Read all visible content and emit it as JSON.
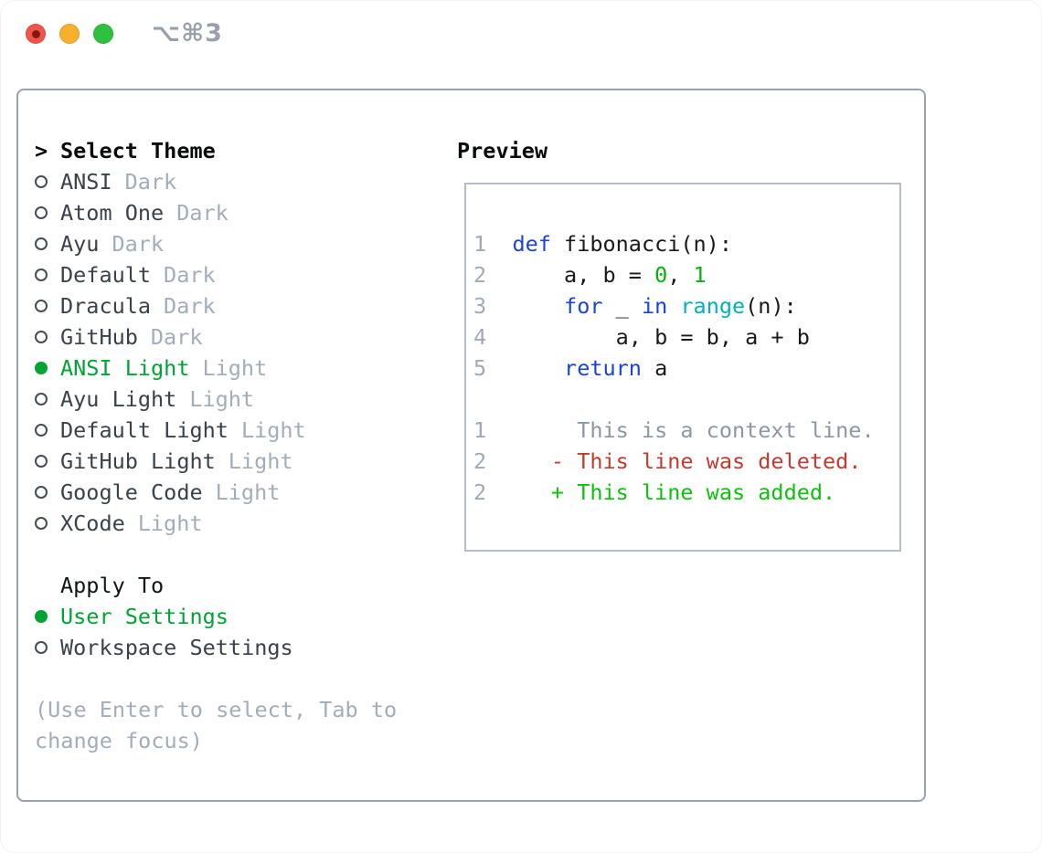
{
  "window": {
    "shortcut_label": "⌥⌘3"
  },
  "colors": {
    "accent_green": "#00a435",
    "added_green": "#0cc20c",
    "number_green": "#06b30c",
    "deleted_red": "#c6392c",
    "keyword_blue": "#1b43d4",
    "builtin_cyan": "#00b1c3",
    "code_text": "#17191d",
    "item_text": "#3a4149",
    "heading_text": "#0a0b0d",
    "muted_gray": "#a3adb9",
    "context_gray": "#8d97a2",
    "line_number_gray": "#a0aab6",
    "main_border": "#99a2b0",
    "preview_border": "#b5bcc7",
    "traffic_red": "#f2544d",
    "traffic_red_dot": "#821a12",
    "traffic_yellow": "#f7b02c",
    "traffic_green": "#2ec03e",
    "shortcut_gray": "#9aa0a9"
  },
  "theme_selector": {
    "cursor": ">",
    "title": "Select Theme",
    "items": [
      {
        "label": "ANSI",
        "variant": "Dark",
        "selected": false
      },
      {
        "label": "Atom One",
        "variant": "Dark",
        "selected": false
      },
      {
        "label": "Ayu",
        "variant": "Dark",
        "selected": false
      },
      {
        "label": "Default",
        "variant": "Dark",
        "selected": false
      },
      {
        "label": "Dracula",
        "variant": "Dark",
        "selected": false
      },
      {
        "label": "GitHub",
        "variant": "Dark",
        "selected": false
      },
      {
        "label": "ANSI Light",
        "variant": "Light",
        "selected": true
      },
      {
        "label": "Ayu Light",
        "variant": "Light",
        "selected": false
      },
      {
        "label": "Default Light",
        "variant": "Light",
        "selected": false
      },
      {
        "label": "GitHub Light",
        "variant": "Light",
        "selected": false
      },
      {
        "label": "Google Code",
        "variant": "Light",
        "selected": false
      },
      {
        "label": "XCode",
        "variant": "Light",
        "selected": false
      }
    ]
  },
  "apply_to": {
    "title": "Apply To",
    "options": [
      {
        "label": "User Settings",
        "selected": true
      },
      {
        "label": "Workspace Settings",
        "selected": false
      }
    ]
  },
  "help_text": "(Use Enter to select, Tab to\nchange focus)",
  "preview": {
    "title": "Preview",
    "code_lines": [
      {
        "num": "1",
        "tokens": [
          {
            "t": "def",
            "c": "keyword"
          },
          {
            "t": " fibonacci(n):",
            "c": "text"
          }
        ]
      },
      {
        "num": "2",
        "tokens": [
          {
            "t": "    a, b = ",
            "c": "text"
          },
          {
            "t": "0",
            "c": "number"
          },
          {
            "t": ", ",
            "c": "text"
          },
          {
            "t": "1",
            "c": "number"
          }
        ]
      },
      {
        "num": "3",
        "tokens": [
          {
            "t": "    ",
            "c": "text"
          },
          {
            "t": "for",
            "c": "keyword"
          },
          {
            "t": " _ ",
            "c": "text"
          },
          {
            "t": "in",
            "c": "keyword"
          },
          {
            "t": " ",
            "c": "text"
          },
          {
            "t": "range",
            "c": "builtin"
          },
          {
            "t": "(n):",
            "c": "text"
          }
        ]
      },
      {
        "num": "4",
        "tokens": [
          {
            "t": "        a, b = b, a + b",
            "c": "text"
          }
        ]
      },
      {
        "num": "5",
        "tokens": [
          {
            "t": "    ",
            "c": "text"
          },
          {
            "t": "return",
            "c": "keyword"
          },
          {
            "t": " a",
            "c": "text"
          }
        ]
      },
      {
        "num": "",
        "tokens": []
      },
      {
        "num": "1",
        "tokens": [
          {
            "t": "     This is a context line.",
            "c": "context"
          }
        ]
      },
      {
        "num": "2",
        "tokens": [
          {
            "t": "   - This line was deleted.",
            "c": "deleted"
          }
        ]
      },
      {
        "num": "2",
        "tokens": [
          {
            "t": "   + This line was added.",
            "c": "added"
          }
        ]
      }
    ]
  }
}
